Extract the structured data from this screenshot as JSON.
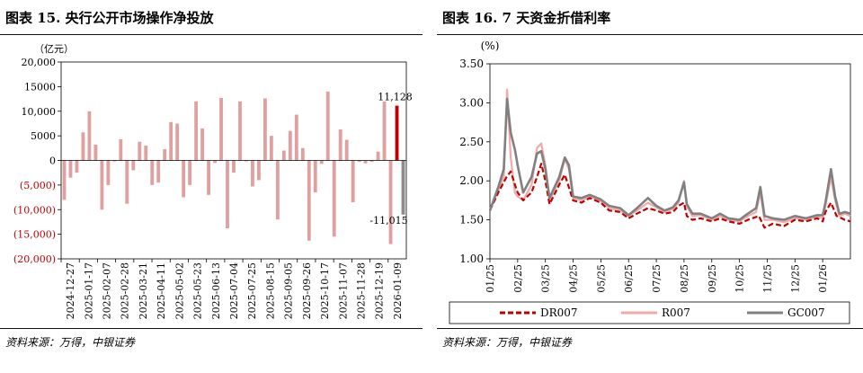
{
  "left": {
    "title": "图表 15. 央行公开市场操作净投放",
    "source": "资料来源：万得，中银证券",
    "chart_data": {
      "type": "bar",
      "unit_label": "（亿元）",
      "ylim": [
        -20000,
        20000
      ],
      "yticks": [
        {
          "value": 20000,
          "label": "20,000"
        },
        {
          "value": 15000,
          "label": "15000"
        },
        {
          "value": 10000,
          "label": "10,000"
        },
        {
          "value": 5000,
          "label": "5000"
        },
        {
          "value": 0,
          "label": "0"
        },
        {
          "value": -5000,
          "label": "(5,000)"
        },
        {
          "value": -10000,
          "label": "(10,000)"
        },
        {
          "value": -15000,
          "label": "(15,000)"
        },
        {
          "value": -20000,
          "label": "(20,000)"
        }
      ],
      "negative_tick_color": "#c00000",
      "x_tick_labels": [
        "2024-12-27",
        "2025-01-17",
        "2025-02-07",
        "2025-02-28",
        "2025-03-21",
        "2025-04-11",
        "2025-05-02",
        "2025-05-23",
        "2025-06-13",
        "2025-07-04",
        "2025-07-25",
        "2025-08-15",
        "2025-09-05",
        "2025-09-26",
        "2025-10-17",
        "2025-11-07",
        "2025-11-28",
        "2025-12-19",
        "2026-01-09"
      ],
      "colors": {
        "bar": "#e0a0a0",
        "highlight": "#c00000",
        "latest": "#8c8c8c"
      },
      "values": [
        -8000,
        -3500,
        -2500,
        5700,
        10000,
        3200,
        -10000,
        -5000,
        -200,
        4300,
        -8800,
        -2000,
        3800,
        3000,
        -5000,
        -4500,
        2300,
        7800,
        7500,
        -7500,
        -5000,
        12000,
        6500,
        -7000,
        -500,
        12700,
        -13800,
        -2500,
        12000,
        -200,
        -5300,
        -4000,
        12600,
        5000,
        -12000,
        2000,
        6000,
        9300,
        2500,
        -16300,
        -6500,
        -700,
        14000,
        -15500,
        6300,
        4200,
        -8500,
        -300,
        -600,
        -300,
        1800,
        12000,
        -17000,
        11128,
        -11015
      ],
      "annotations": [
        {
          "text": "11,128",
          "value": 11128
        },
        {
          "text": "-11,015",
          "value": -11015
        }
      ]
    }
  },
  "right": {
    "title": "图表 16. 7 天资金折借利率",
    "source": "资料来源：万得，中银证券",
    "chart_data": {
      "type": "line",
      "unit_label": "(%)",
      "ylim": [
        1.0,
        3.5
      ],
      "yticks": [
        "1.00",
        "1.50",
        "2.00",
        "2.50",
        "3.00",
        "3.50"
      ],
      "x_tick_labels": [
        "01/25",
        "02/25",
        "03/25",
        "04/25",
        "05/25",
        "06/25",
        "07/25",
        "08/25",
        "09/25",
        "10/25",
        "11/25",
        "12/25",
        "01/26"
      ],
      "series": [
        {
          "name": "DR007",
          "color": "#c00000",
          "style": "dashed",
          "points": [
            [
              0,
              1.62
            ],
            [
              0.3,
              1.85
            ],
            [
              0.6,
              2.05
            ],
            [
              0.75,
              2.12
            ],
            [
              0.9,
              1.95
            ],
            [
              1.0,
              1.85
            ],
            [
              1.2,
              1.75
            ],
            [
              1.5,
              1.85
            ],
            [
              1.7,
              2.05
            ],
            [
              1.85,
              2.22
            ],
            [
              2.0,
              2.0
            ],
            [
              2.15,
              1.7
            ],
            [
              2.5,
              1.95
            ],
            [
              2.7,
              2.08
            ],
            [
              3.0,
              1.75
            ],
            [
              3.3,
              1.72
            ],
            [
              3.6,
              1.78
            ],
            [
              4.0,
              1.72
            ],
            [
              4.3,
              1.62
            ],
            [
              4.7,
              1.6
            ],
            [
              5.0,
              1.52
            ],
            [
              5.3,
              1.58
            ],
            [
              5.7,
              1.65
            ],
            [
              6.0,
              1.62
            ],
            [
              6.3,
              1.58
            ],
            [
              6.6,
              1.6
            ],
            [
              6.8,
              1.68
            ],
            [
              7.0,
              1.72
            ],
            [
              7.1,
              1.55
            ],
            [
              7.3,
              1.5
            ],
            [
              7.6,
              1.52
            ],
            [
              8.0,
              1.48
            ],
            [
              8.3,
              1.52
            ],
            [
              8.6,
              1.48
            ],
            [
              9.0,
              1.45
            ],
            [
              9.3,
              1.5
            ],
            [
              9.7,
              1.55
            ],
            [
              9.9,
              1.4
            ],
            [
              10.2,
              1.45
            ],
            [
              10.6,
              1.42
            ],
            [
              11.0,
              1.5
            ],
            [
              11.4,
              1.48
            ],
            [
              11.8,
              1.52
            ],
            [
              12.0,
              1.48
            ],
            [
              12.1,
              1.6
            ],
            [
              12.3,
              1.72
            ],
            [
              12.5,
              1.55
            ],
            [
              12.8,
              1.5
            ],
            [
              13.0,
              1.48
            ]
          ]
        },
        {
          "name": "R007",
          "color": "#f0aaaa",
          "style": "solid",
          "points": [
            [
              0,
              1.62
            ],
            [
              0.3,
              1.88
            ],
            [
              0.5,
              2.05
            ],
            [
              0.62,
              3.17
            ],
            [
              0.75,
              2.3
            ],
            [
              0.9,
              1.85
            ],
            [
              1.0,
              1.8
            ],
            [
              1.2,
              1.75
            ],
            [
              1.5,
              1.95
            ],
            [
              1.7,
              2.42
            ],
            [
              1.85,
              2.48
            ],
            [
              2.0,
              2.2
            ],
            [
              2.15,
              1.75
            ],
            [
              2.5,
              2.0
            ],
            [
              2.7,
              2.28
            ],
            [
              2.85,
              2.15
            ],
            [
              3.0,
              1.78
            ],
            [
              3.3,
              1.75
            ],
            [
              3.6,
              1.8
            ],
            [
              4.0,
              1.74
            ],
            [
              4.3,
              1.65
            ],
            [
              4.7,
              1.62
            ],
            [
              5.0,
              1.55
            ],
            [
              5.3,
              1.62
            ],
            [
              5.7,
              1.72
            ],
            [
              6.0,
              1.66
            ],
            [
              6.3,
              1.6
            ],
            [
              6.6,
              1.64
            ],
            [
              6.8,
              1.72
            ],
            [
              7.0,
              2.0
            ],
            [
              7.1,
              1.68
            ],
            [
              7.3,
              1.55
            ],
            [
              7.6,
              1.56
            ],
            [
              8.0,
              1.5
            ],
            [
              8.3,
              1.55
            ],
            [
              8.6,
              1.5
            ],
            [
              9.0,
              1.48
            ],
            [
              9.3,
              1.55
            ],
            [
              9.6,
              1.6
            ],
            [
              9.75,
              1.85
            ],
            [
              9.9,
              1.5
            ],
            [
              10.2,
              1.5
            ],
            [
              10.6,
              1.47
            ],
            [
              11.0,
              1.52
            ],
            [
              11.4,
              1.5
            ],
            [
              11.8,
              1.54
            ],
            [
              12.0,
              1.52
            ],
            [
              12.1,
              1.68
            ],
            [
              12.3,
              2.05
            ],
            [
              12.45,
              1.75
            ],
            [
              12.6,
              1.55
            ],
            [
              12.8,
              1.58
            ],
            [
              13.0,
              1.55
            ]
          ]
        },
        {
          "name": "GC007",
          "color": "#808080",
          "style": "solid",
          "points": [
            [
              0,
              1.62
            ],
            [
              0.3,
              1.92
            ],
            [
              0.5,
              2.15
            ],
            [
              0.62,
              3.05
            ],
            [
              0.75,
              2.62
            ],
            [
              0.9,
              2.4
            ],
            [
              1.0,
              2.2
            ],
            [
              1.2,
              1.85
            ],
            [
              1.5,
              2.05
            ],
            [
              1.7,
              2.35
            ],
            [
              1.85,
              2.38
            ],
            [
              2.0,
              2.15
            ],
            [
              2.15,
              1.78
            ],
            [
              2.5,
              2.05
            ],
            [
              2.7,
              2.3
            ],
            [
              2.85,
              2.2
            ],
            [
              3.0,
              1.8
            ],
            [
              3.3,
              1.78
            ],
            [
              3.6,
              1.82
            ],
            [
              4.0,
              1.76
            ],
            [
              4.3,
              1.68
            ],
            [
              4.7,
              1.65
            ],
            [
              5.0,
              1.56
            ],
            [
              5.3,
              1.65
            ],
            [
              5.7,
              1.78
            ],
            [
              6.0,
              1.68
            ],
            [
              6.3,
              1.62
            ],
            [
              6.6,
              1.66
            ],
            [
              6.8,
              1.75
            ],
            [
              7.0,
              1.98
            ],
            [
              7.1,
              1.7
            ],
            [
              7.3,
              1.58
            ],
            [
              7.6,
              1.58
            ],
            [
              8.0,
              1.52
            ],
            [
              8.3,
              1.58
            ],
            [
              8.6,
              1.52
            ],
            [
              9.0,
              1.5
            ],
            [
              9.3,
              1.58
            ],
            [
              9.6,
              1.65
            ],
            [
              9.75,
              1.92
            ],
            [
              9.9,
              1.55
            ],
            [
              10.2,
              1.52
            ],
            [
              10.6,
              1.5
            ],
            [
              11.0,
              1.55
            ],
            [
              11.4,
              1.52
            ],
            [
              11.8,
              1.56
            ],
            [
              12.0,
              1.56
            ],
            [
              12.1,
              1.72
            ],
            [
              12.3,
              2.15
            ],
            [
              12.45,
              1.8
            ],
            [
              12.6,
              1.58
            ],
            [
              12.8,
              1.6
            ],
            [
              13.0,
              1.58
            ]
          ]
        }
      ]
    }
  }
}
